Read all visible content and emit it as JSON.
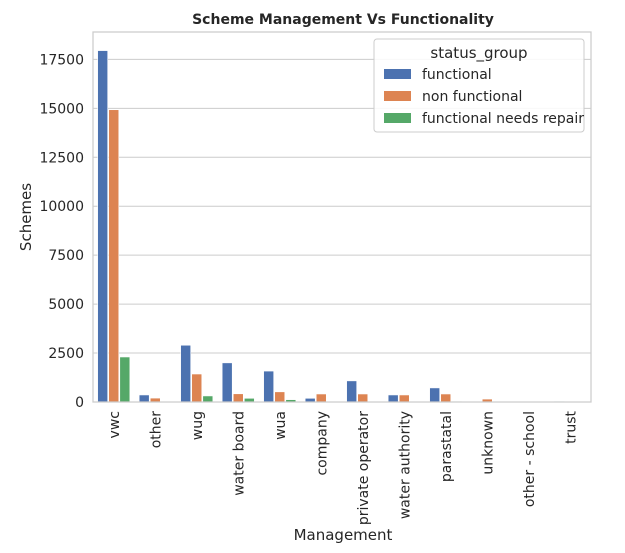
{
  "chart_data": {
    "type": "bar",
    "title": "Scheme Management Vs Functionality",
    "xlabel": "Management",
    "ylabel": "Schemes",
    "ylim": [
      0,
      18900
    ],
    "yticks": [
      0,
      2500,
      5000,
      7500,
      10000,
      12500,
      15000,
      17500
    ],
    "grid": "horizontal",
    "legend_title": "status_group",
    "legend_position": "top-right",
    "categories": [
      "vwc",
      "other",
      "wug",
      "water board",
      "wua",
      "company",
      "private operator",
      "water authority",
      "parastatal",
      "unknown",
      "other - school",
      "trust"
    ],
    "series": [
      {
        "name": "functional",
        "color": "#4c72b0",
        "values": [
          17950,
          360,
          2900,
          2000,
          1580,
          190,
          1080,
          360,
          720,
          40,
          15,
          30
        ]
      },
      {
        "name": "non functional",
        "color": "#dd8452",
        "values": [
          14930,
          200,
          1430,
          420,
          520,
          410,
          410,
          360,
          410,
          150,
          10,
          25
        ]
      },
      {
        "name": "functional needs repair",
        "color": "#55a868",
        "values": [
          2300,
          40,
          310,
          190,
          120,
          20,
          40,
          20,
          30,
          10,
          5,
          5
        ]
      }
    ]
  }
}
